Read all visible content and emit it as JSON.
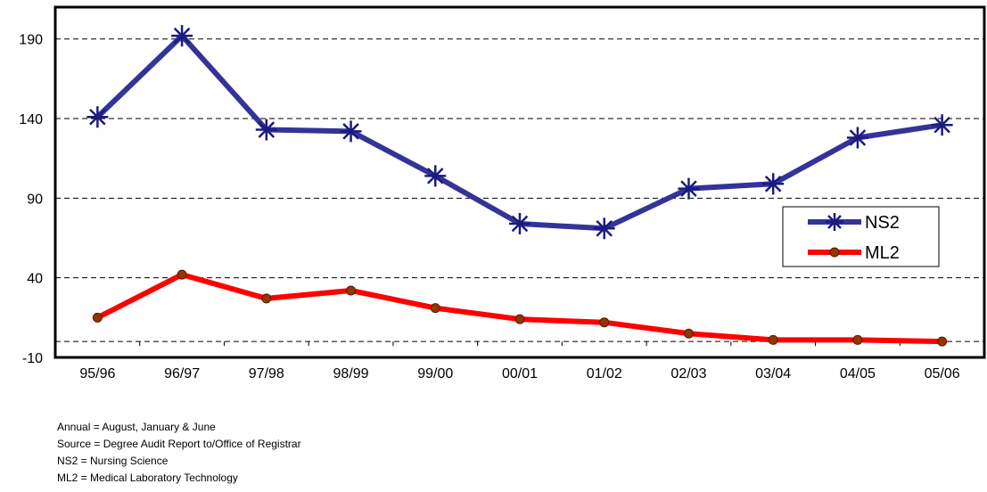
{
  "chart_data": {
    "type": "line",
    "categories": [
      "95/96",
      "96/97",
      "97/98",
      "98/99",
      "99/00",
      "00/01",
      "01/02",
      "02/03",
      "03/04",
      "04/05",
      "05/06"
    ],
    "series": [
      {
        "name": "NS2",
        "color": "#333399",
        "marker": "asterisk",
        "values": [
          141,
          192,
          133,
          132,
          104,
          74,
          71,
          96,
          99,
          128,
          136
        ]
      },
      {
        "name": "ML2",
        "color": "#ff0000",
        "marker": "circle",
        "marker_color": "#993300",
        "values": [
          15,
          42,
          27,
          32,
          21,
          14,
          12,
          5,
          1,
          1,
          0
        ]
      }
    ],
    "y_ticks": [
      "190",
      "140",
      "90",
      "40",
      "-10"
    ],
    "ylim": [
      -10,
      210
    ],
    "grid": "horizontal dashed",
    "legend_position": "right-middle",
    "title": "",
    "xlabel": "",
    "ylabel": ""
  },
  "notes": [
    "Annual = August, January & June",
    "Source = Degree Audit Report to/Office of Registrar",
    "NS2   =  Nursing Science",
    "ML2  =  Medical Laboratory Technology"
  ]
}
